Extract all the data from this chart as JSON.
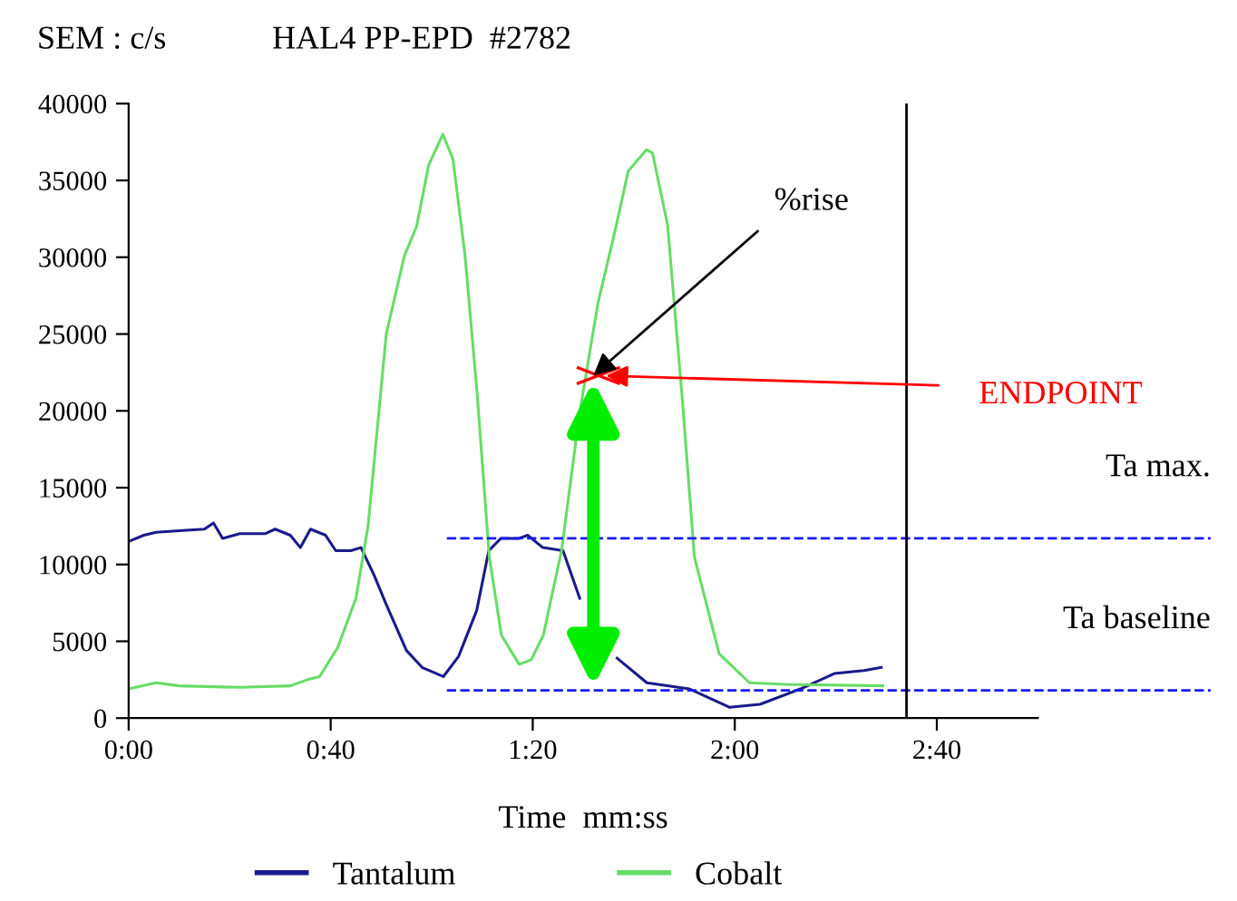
{
  "chart_data": {
    "type": "line",
    "title": "HAL4 PP-EPD  #2782",
    "ylabel": "SEM : c/s",
    "xlabel": "Time  mm:ss",
    "x": [
      0,
      3,
      5.4,
      10,
      15,
      16.8,
      18.6,
      22,
      27,
      29,
      32,
      34,
      36,
      39,
      41,
      44,
      46,
      48.6,
      51,
      55,
      58.1,
      62.3,
      65.3,
      68.9,
      71.3,
      73.7,
      77.3,
      79,
      82,
      86,
      89.3,
      93,
      96.7,
      102.6,
      111,
      119,
      125,
      133,
      139.7,
      145.6,
      149
    ],
    "series": [
      {
        "name": "Tantalum",
        "color": "#1a1a8c",
        "values": [
          11500,
          11900,
          12100,
          12200,
          12300,
          12700,
          11700,
          12000,
          12000,
          12300,
          11900,
          11100,
          12300,
          11900,
          10900,
          10900,
          11100,
          9300,
          7400,
          4400,
          3300,
          2700,
          4000,
          7000,
          10900,
          11700,
          11700,
          11900,
          11100,
          10900,
          7800,
          null,
          3900,
          2300,
          1900,
          700,
          900,
          1900,
          2900,
          3100,
          3300
        ]
      },
      {
        "name": "Cobalt",
        "color": "#66dd66",
        "x": [
          0,
          5.4,
          10,
          22,
          32,
          35.4,
          37.8,
          41.4,
          45,
          47.4,
          51,
          54.6,
          57,
          59.4,
          62.2,
          64.2,
          66.6,
          69,
          71.4,
          73.8,
          77.3,
          79.7,
          82.1,
          85.7,
          89.3,
          92.9,
          96.5,
          98.9,
          102.5,
          103.7,
          106.7,
          109.7,
          112,
          116.9,
          122.9,
          130,
          149.3
        ],
        "values": [
          1900,
          2300,
          2100,
          2000,
          2100,
          2500,
          2700,
          4600,
          7800,
          12500,
          25000,
          30100,
          32000,
          36000,
          38000,
          36400,
          30100,
          21100,
          10500,
          5400,
          3500,
          3800,
          5400,
          10900,
          19900,
          27000,
          32000,
          35600,
          37000,
          36800,
          32100,
          20400,
          10500,
          4200,
          2300,
          2200,
          2100
        ]
      }
    ],
    "xlim": [
      0,
      180
    ],
    "xticks": [
      {
        "value": 0,
        "label": "0:00"
      },
      {
        "value": 40,
        "label": "0:40"
      },
      {
        "value": 80,
        "label": "1:20"
      },
      {
        "value": 120,
        "label": "2:00"
      },
      {
        "value": 160,
        "label": "2:40"
      }
    ],
    "ylim": [
      0,
      40000
    ],
    "yticks": [
      0,
      5000,
      10000,
      15000,
      20000,
      25000,
      30000,
      35000,
      40000
    ],
    "ref_lines": [
      {
        "axis": "y",
        "value": 11700,
        "label": "Ta max.",
        "color": "#1a1aee",
        "line_style": "dashed"
      },
      {
        "axis": "y",
        "value": 1800,
        "label": "Ta baseline",
        "color": "#1a1aee",
        "line_style": "dashed"
      },
      {
        "axis": "x",
        "value": 154,
        "color": "#000000",
        "line_style": "solid"
      }
    ],
    "annotations": [
      {
        "text": "%rise",
        "x": 92,
        "y": 22300
      },
      {
        "text": "ENDPOINT",
        "x": 93,
        "y": 22300
      }
    ],
    "grid": false,
    "legend": "bottom",
    "marker": "none",
    "line_style": "solid"
  }
}
